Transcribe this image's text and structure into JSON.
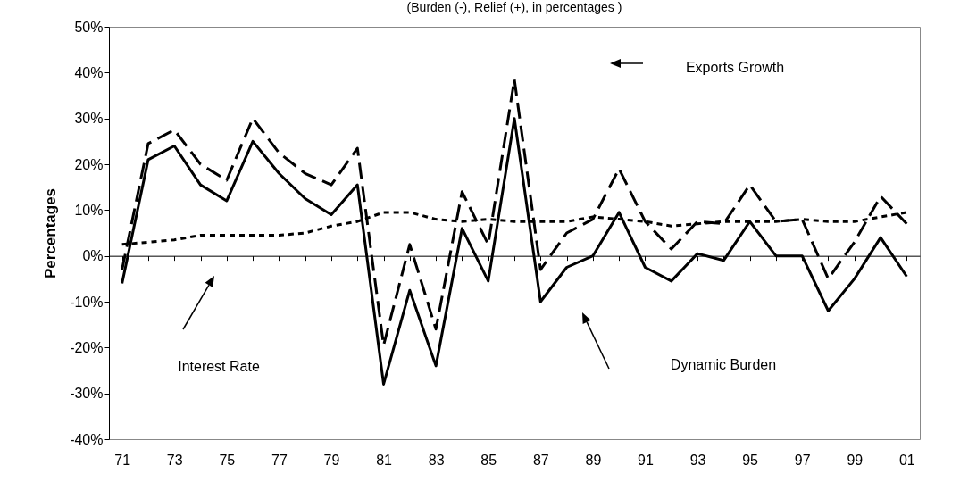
{
  "chart_data": {
    "type": "line",
    "title": "(Burden (-),  Relief (+), in percentages )",
    "ylabel": "Percentages",
    "categories": [
      "71",
      null,
      "73",
      null,
      "75",
      null,
      "77",
      null,
      "79",
      null,
      "81",
      null,
      "83",
      null,
      "85",
      null,
      "87",
      null,
      "89",
      null,
      "91",
      null,
      "93",
      null,
      "95",
      null,
      "97",
      null,
      "99",
      null,
      "01"
    ],
    "series": [
      {
        "color": "#000000",
        "line_style": "solid",
        "values": [
          -6,
          21,
          24,
          15.5,
          12,
          25,
          18,
          12.5,
          9,
          15.5,
          -28,
          -7.5,
          -24,
          6,
          -5.5,
          30,
          -10,
          -2.5,
          0,
          9.5,
          -2.5,
          -5.5,
          0.5,
          -1,
          7.5,
          0,
          0,
          -12,
          -5,
          4,
          -4.5
        ]
      },
      {
        "color": "#000000",
        "line_style": "dashed",
        "values": [
          -3,
          24.5,
          27.5,
          20,
          16.5,
          30,
          22.5,
          18,
          15.5,
          23.5,
          -19.5,
          2.5,
          -16,
          14,
          2.5,
          38.5,
          -3,
          5,
          8,
          19,
          7.5,
          1.5,
          7.5,
          7,
          15.5,
          7.5,
          8,
          -5,
          3,
          13,
          7
        ]
      },
      {
        "color": "#000000",
        "line_style": "dotted",
        "values": [
          2.5,
          3,
          3.5,
          4.5,
          4.5,
          4.5,
          4.5,
          5,
          6.5,
          7.5,
          9.5,
          9.5,
          8,
          7.5,
          8,
          7.5,
          7.5,
          7.5,
          8.5,
          8,
          7.5,
          6.5,
          7,
          7.5,
          7.5,
          7.5,
          8,
          7.5,
          7.5,
          8.5,
          9.5
        ]
      }
    ],
    "ylim": [
      -40,
      50
    ],
    "yticks": [
      {
        "value": -40,
        "label": "-40%"
      },
      {
        "value": -30,
        "label": "-30%"
      },
      {
        "value": -20,
        "label": "-20%"
      },
      {
        "value": -10,
        "label": "-10%"
      },
      {
        "value": 0,
        "label": "0%"
      },
      {
        "value": 10,
        "label": "10%"
      },
      {
        "value": 20,
        "label": "20%"
      },
      {
        "value": 30,
        "label": "30%"
      },
      {
        "value": 40,
        "label": "40%"
      },
      {
        "value": 50,
        "label": "50%"
      }
    ],
    "annotations": [
      "Exports Growth",
      "Interest Rate",
      "Dynamic Burden"
    ]
  }
}
